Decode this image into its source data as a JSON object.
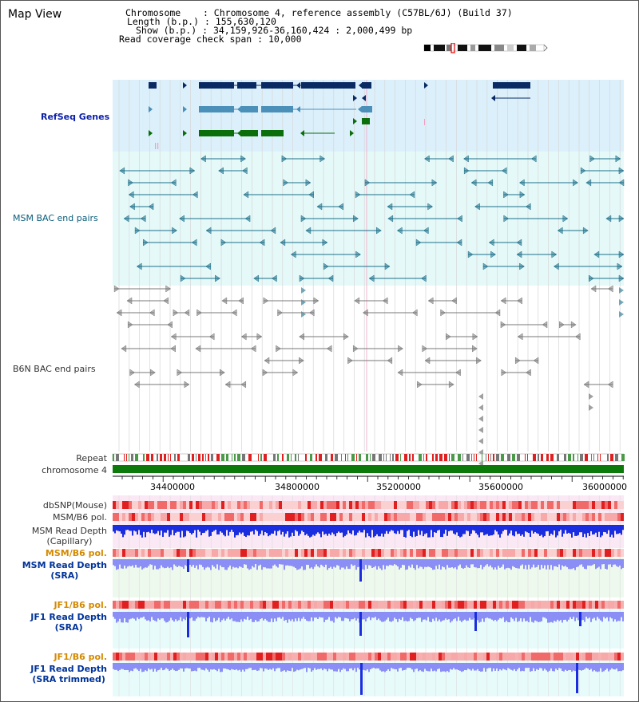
{
  "header": {
    "title": "Map View",
    "chromosome_label": "Chromosome",
    "chromosome_value": "Chromosome 4, reference assembly (C57BL/6J) (Build 37)",
    "length_label": "Length (b.p.)",
    "length_value": "155,630,120",
    "show_label": "Show (b.p.)",
    "show_value": "34,159,926-36,160,424 : 2,000,499 bp",
    "coverage_label": "Read coverage check span",
    "coverage_value": "10,000"
  },
  "tracks": {
    "refseq": "RefSeq Genes",
    "msm_bac": "MSM BAC end pairs",
    "b6n_bac": "B6N BAC end pairs",
    "repeat": "Repeat",
    "chromosome": "chromosome 4",
    "dbsnp": "dbSNP(Mouse)",
    "msm_b6_pol_1": "MSM/B6 pol.",
    "msm_depth_cap_1": "MSM Read Depth",
    "msm_depth_cap_2": "(Capillary)",
    "msm_b6_pol_2": "MSM/B6 pol.",
    "msm_depth_sra_1": "MSM Read Depth",
    "msm_depth_sra_2": "(SRA)",
    "jf1_b6_pol_1": "JF1/B6 pol.",
    "jf1_depth_sra_1": "JF1 Read Depth",
    "jf1_depth_sra_2": "(SRA)",
    "jf1_b6_pol_2": "JF1/B6 pol.",
    "jf1_depth_trim_1": "JF1 Read Depth",
    "jf1_depth_trim_2": "(SRA trimmed)"
  },
  "axis": {
    "ticks": [
      "34400000",
      "34800000",
      "35200000",
      "35600000",
      "36000000"
    ]
  },
  "colors": {
    "refseq_bg": "#dcf0fb",
    "bac_bg": "#e6f9f9",
    "gene_dark": "#0a2a63",
    "gene_mid": "#4a90b8",
    "gene_green": "#0a6e0a",
    "bac_teal": "#1a6e88",
    "bac_gray": "#777777",
    "repeat_red": "#e02020",
    "chrom_green": "#0b7a0b",
    "snp_red": "#f07070",
    "depth_blue": "#1a2ee0",
    "depth_light": "#8a8ef5",
    "pink_bg": "#fbe8f5",
    "mint_bg": "#eef9ee",
    "cyan_bg": "#e8fbfb"
  }
}
